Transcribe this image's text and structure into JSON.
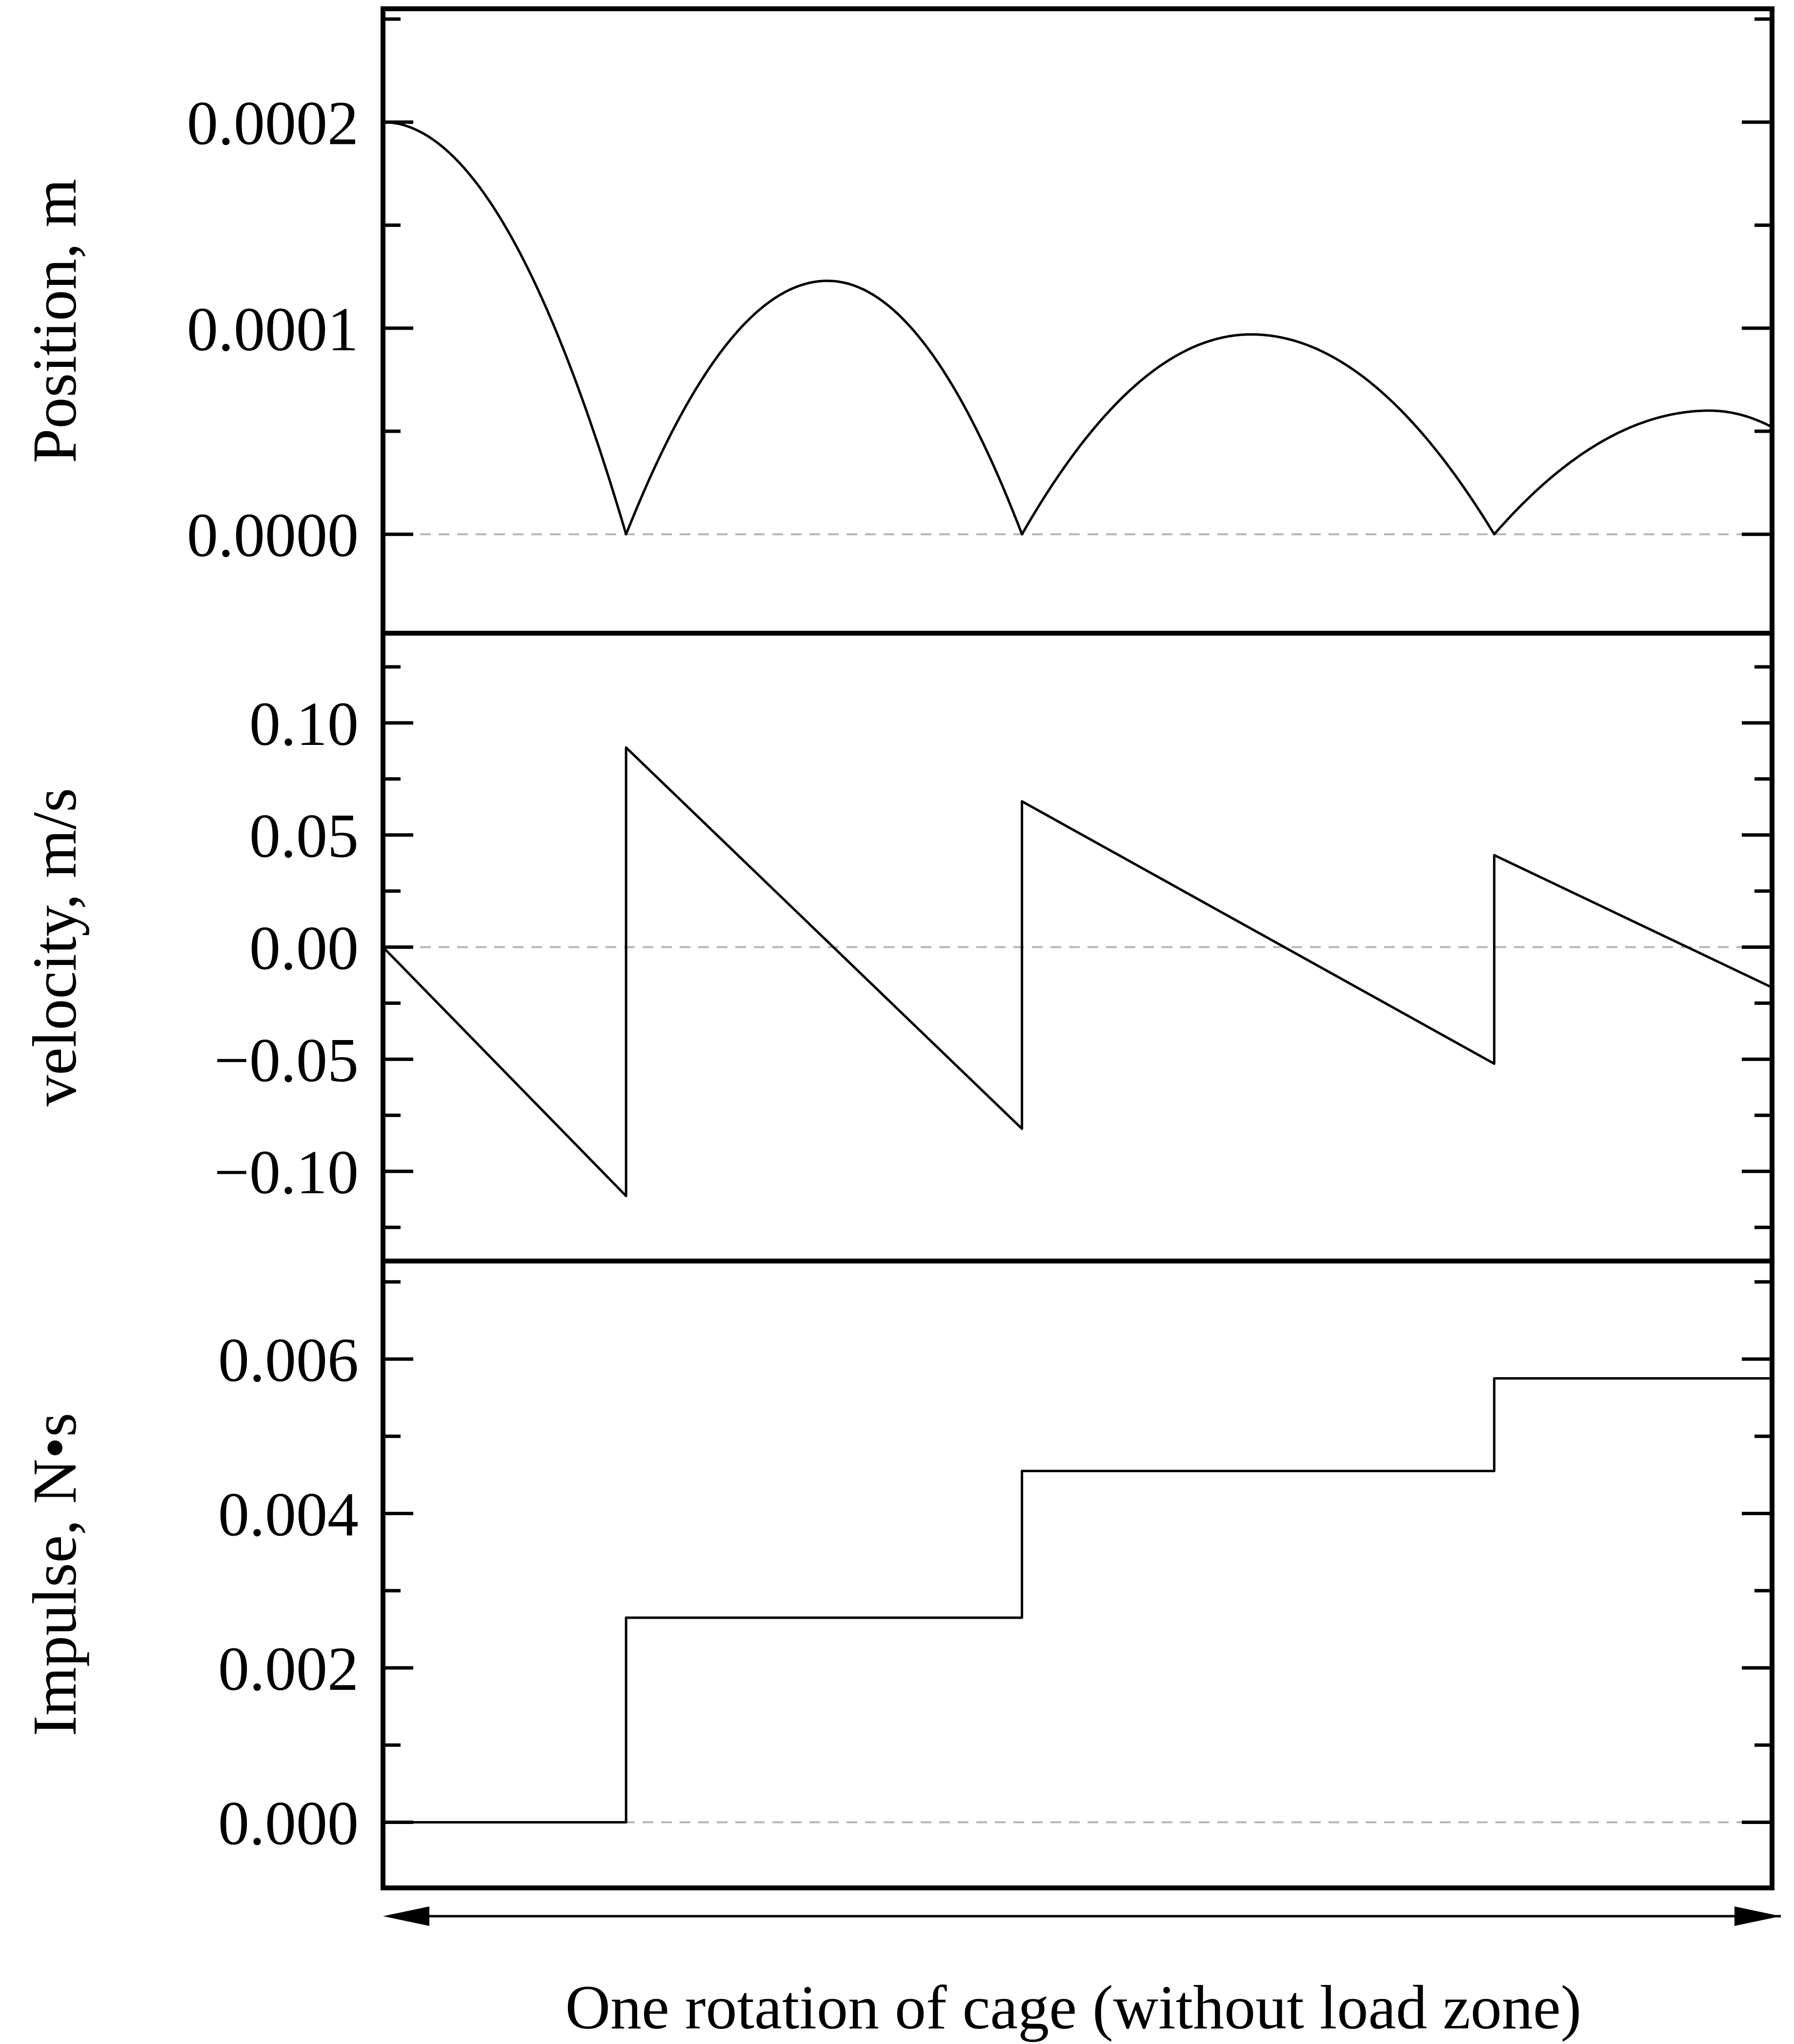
{
  "chart_data": [
    {
      "type": "line",
      "ylabel": "Position, m",
      "xlabel": "",
      "xlim": [
        0,
        1
      ],
      "ylim": [
        -4.8e-05,
        0.000255
      ],
      "yticks": [
        0.0,
        0.0001,
        0.0002
      ],
      "yticklabels": [
        "0.0000",
        "0.0001",
        "0.0002"
      ],
      "zero_line": true,
      "series": [
        {
          "kind": "bounce",
          "segments": [
            {
              "x0": 0.0,
              "x1": 0.175,
              "y_start": 0.0002,
              "peak_x": 0.0,
              "peak_y": 0.0002,
              "y_end": 0.0
            },
            {
              "x0": 0.175,
              "x1": 0.46,
              "y_start": 0.0,
              "peak_x": 0.32,
              "peak_y": 0.000123,
              "y_end": 0.0
            },
            {
              "x0": 0.46,
              "x1": 0.8,
              "y_start": 0.0,
              "peak_x": 0.625,
              "peak_y": 9.7e-05,
              "y_end": 0.0
            },
            {
              "x0": 0.8,
              "x1": 1.0,
              "y_start": 0.0,
              "peak_x": 0.955,
              "peak_y": 6e-05,
              "y_end": 5.2e-05
            }
          ]
        }
      ]
    },
    {
      "type": "line",
      "ylabel": "velocity, m/s",
      "xlabel": "",
      "xlim": [
        0,
        1
      ],
      "ylim": [
        -0.14,
        0.14
      ],
      "yticks": [
        -0.1,
        -0.05,
        0.0,
        0.05,
        0.1
      ],
      "yticklabels": [
        "−0.10",
        "−0.05",
        "0.00",
        "0.05",
        "0.10"
      ],
      "zero_line": true,
      "series": [
        {
          "x": [
            0.0,
            0.175,
            0.175,
            0.46,
            0.46,
            0.8,
            0.8,
            1.0
          ],
          "y": [
            0.0,
            -0.111,
            0.089,
            -0.081,
            0.065,
            -0.052,
            0.041,
            -0.018
          ]
        }
      ]
    },
    {
      "type": "line",
      "ylabel": "Impulse, N•s",
      "xlabel": "",
      "xlim": [
        0,
        1
      ],
      "ylim": [
        -0.00085,
        0.00727
      ],
      "yticks": [
        0.0,
        0.002,
        0.004,
        0.006
      ],
      "yticklabels": [
        "0.000",
        "0.002",
        "0.004",
        "0.006"
      ],
      "zero_line": true,
      "series": [
        {
          "x": [
            0.0,
            0.175,
            0.175,
            0.46,
            0.46,
            0.8,
            0.8,
            1.0
          ],
          "y": [
            0.0,
            0.0,
            0.00265,
            0.00265,
            0.00455,
            0.00455,
            0.00575,
            0.00575
          ]
        }
      ]
    }
  ],
  "x_caption": "One rotation of cage (without load zone)"
}
